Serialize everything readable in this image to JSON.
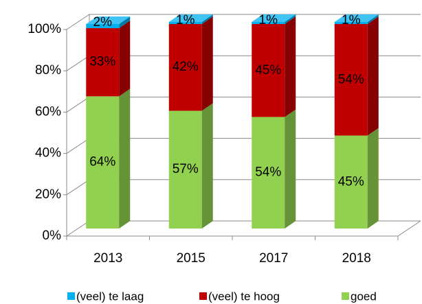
{
  "chart_data": {
    "type": "bar3d_stacked",
    "categories": [
      "2013",
      "2015",
      "2017",
      "2018"
    ],
    "series": [
      {
        "name": "(veel) te laag",
        "color": "#00b0f0",
        "values": [
          2,
          1,
          1,
          1
        ],
        "value_labels": [
          "2%",
          "1%",
          "1%",
          "1%"
        ]
      },
      {
        "name": "(veel) te hoog",
        "color": "#c00000",
        "values": [
          33,
          42,
          45,
          54
        ],
        "value_labels": [
          "33%",
          "42%",
          "45%",
          "54%"
        ]
      },
      {
        "name": "goed",
        "color": "#92d050",
        "values": [
          64,
          57,
          54,
          45
        ],
        "value_labels": [
          "64%",
          "57%",
          "54%",
          "45%"
        ]
      }
    ],
    "ylim": [
      0,
      100
    ],
    "yticks": [
      {
        "value": 0,
        "label": "0%"
      },
      {
        "value": 20,
        "label": "20%"
      },
      {
        "value": 40,
        "label": "40%"
      },
      {
        "value": 60,
        "label": "60%"
      },
      {
        "value": 80,
        "label": "80%"
      },
      {
        "value": 100,
        "label": "100%"
      }
    ],
    "grid": true,
    "legend": "bottom"
  }
}
